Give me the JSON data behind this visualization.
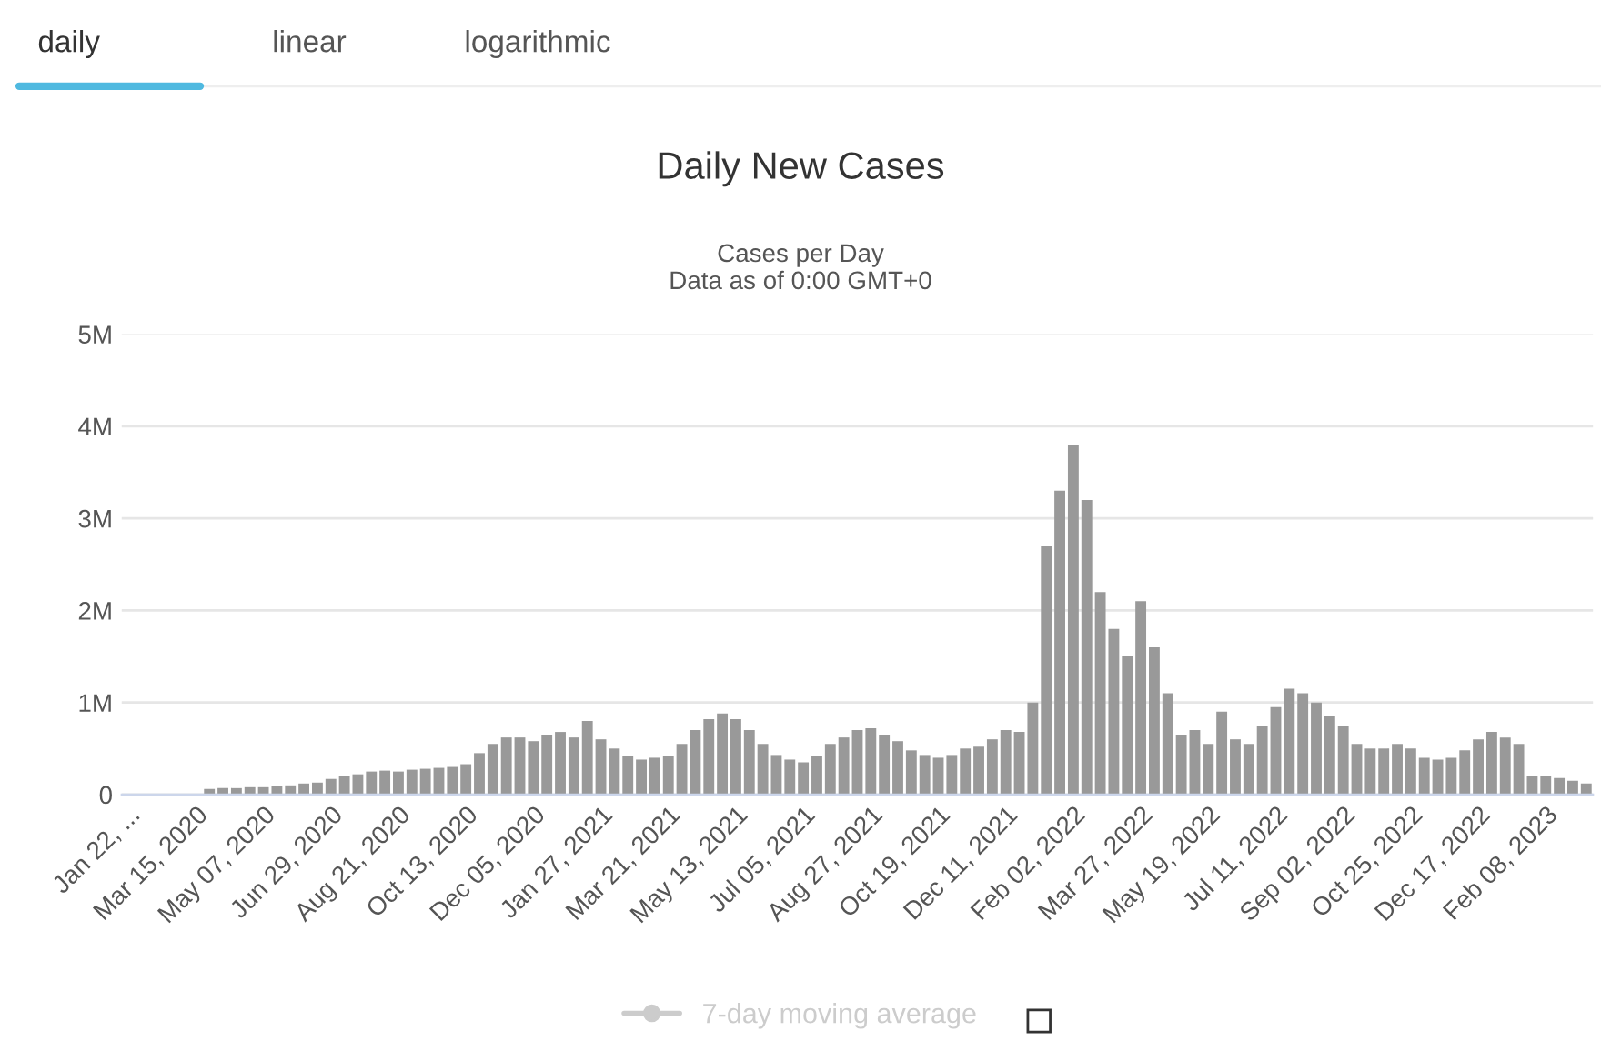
{
  "chart_data": {
    "type": "bar",
    "title": "Daily New Cases",
    "subtitle": "Cases per Day\nData as of 0:00 GMT+0",
    "annotations": [
      "daily",
      "linear",
      "logarithmic"
    ],
    "categories": [
      "Jan 22, ...",
      null,
      null,
      null,
      null,
      "Mar 15, 2020",
      null,
      null,
      null,
      null,
      "May 07, 2020",
      null,
      null,
      null,
      null,
      "Jun 29, 2020",
      null,
      null,
      null,
      null,
      "Aug 21, 2020",
      null,
      null,
      null,
      null,
      "Oct 13, 2020",
      null,
      null,
      null,
      null,
      "Dec 05, 2020",
      null,
      null,
      null,
      null,
      "Jan 27, 2021",
      null,
      null,
      null,
      null,
      "Mar 21, 2021",
      null,
      null,
      null,
      null,
      "May 13, 2021",
      null,
      null,
      null,
      null,
      "Jul 05, 2021",
      null,
      null,
      null,
      null,
      "Aug 27, 2021",
      null,
      null,
      null,
      null,
      "Oct 19, 2021",
      null,
      null,
      null,
      null,
      "Dec 11, 2021",
      null,
      null,
      null,
      null,
      "Feb 02, 2022",
      null,
      null,
      null,
      null,
      "Mar 27, 2022",
      null,
      null,
      null,
      null,
      "May 19, 2022",
      null,
      null,
      null,
      null,
      "Jul 11, 2022",
      null,
      null,
      null,
      null,
      "Sep 02, 2022",
      null,
      null,
      null,
      null,
      "Oct 25, 2022",
      null,
      null,
      null,
      null,
      "Dec 17, 2022",
      null,
      null,
      null,
      null,
      "Feb 08, 2023",
      null,
      null,
      null
    ],
    "series": [
      {
        "color": "#999999",
        "values": [
          0,
          0,
          0,
          0,
          0,
          0,
          0.06,
          0.07,
          0.07,
          0.08,
          0.08,
          0.09,
          0.1,
          0.12,
          0.13,
          0.17,
          0.2,
          0.22,
          0.25,
          0.26,
          0.25,
          0.27,
          0.28,
          0.29,
          0.3,
          0.33,
          0.45,
          0.55,
          0.62,
          0.62,
          0.58,
          0.65,
          0.68,
          0.62,
          0.8,
          0.6,
          0.5,
          0.42,
          0.38,
          0.4,
          0.42,
          0.55,
          0.7,
          0.82,
          0.88,
          0.82,
          0.7,
          0.55,
          0.43,
          0.38,
          0.35,
          0.42,
          0.55,
          0.62,
          0.7,
          0.72,
          0.65,
          0.58,
          0.48,
          0.43,
          0.4,
          0.43,
          0.5,
          0.52,
          0.6,
          0.7,
          0.68,
          1.0,
          2.7,
          3.3,
          3.8,
          3.2,
          2.2,
          1.8,
          1.5,
          2.1,
          1.6,
          1.1,
          0.65,
          0.7,
          0.55,
          0.9,
          0.6,
          0.55,
          0.75,
          0.95,
          1.15,
          1.1,
          1.0,
          0.85,
          0.75,
          0.55,
          0.5,
          0.5,
          0.55,
          0.5,
          0.4,
          0.38,
          0.4,
          0.48,
          0.6,
          0.68,
          0.62,
          0.55,
          0.2,
          0.2,
          0.18,
          0.15,
          0.12
        ]
      },
      {
        "type": "line",
        "name": "7-day moving average",
        "color": "#cccccc",
        "marker": "circle",
        "values": [
          null,
          null,
          null,
          null,
          null,
          null,
          null,
          null,
          null,
          null,
          null,
          null,
          null,
          null,
          null,
          null,
          null,
          null,
          null,
          null,
          null,
          null,
          null,
          null,
          null,
          null,
          null,
          null,
          null,
          null,
          null,
          null,
          null,
          null,
          null,
          null,
          null,
          null,
          null,
          null,
          null,
          null,
          null,
          null,
          null,
          null,
          null,
          null,
          null,
          null,
          null,
          null,
          null,
          null,
          null,
          null,
          null,
          null,
          null,
          null,
          null,
          null,
          null,
          null,
          null,
          null,
          null,
          null,
          null,
          null,
          null,
          null,
          null,
          null,
          null,
          null,
          null,
          null,
          null,
          null,
          null,
          null,
          null,
          null,
          null,
          null,
          null,
          null,
          null,
          null,
          null,
          null,
          null,
          null,
          null,
          null,
          null,
          null,
          null,
          null,
          null,
          null,
          null,
          null,
          null,
          null,
          null,
          null,
          null
        ]
      }
    ],
    "ylim": [
      0,
      5
    ],
    "yticks": [
      {
        "value": 0,
        "label": "0"
      },
      {
        "value": 1,
        "label": "1M"
      },
      {
        "value": 2,
        "label": "2M"
      },
      {
        "value": 3,
        "label": "3M"
      },
      {
        "value": 4,
        "label": "4M"
      },
      {
        "value": 5,
        "label": "5M"
      }
    ],
    "grid": "y",
    "legend": "bottom"
  }
}
